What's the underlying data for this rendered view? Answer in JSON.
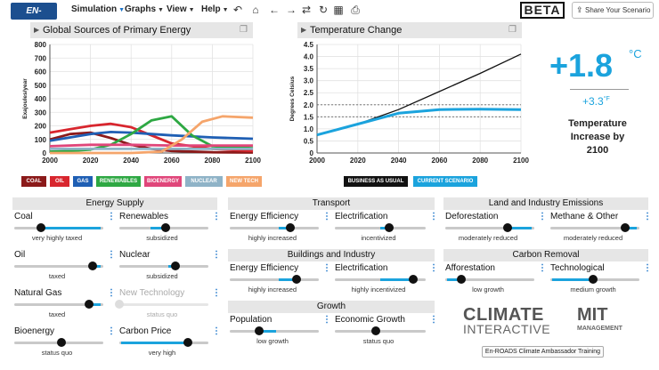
{
  "app": {
    "logo_text": "EN-ROADS",
    "menus": [
      {
        "label": "Simulation",
        "caret": true
      },
      {
        "label": "Graphs",
        "caret": true
      },
      {
        "label": "View",
        "caret": true
      },
      {
        "label": "Help",
        "caret": true
      }
    ],
    "beta_label": "BETA",
    "share_label": "Share Your Scenario"
  },
  "graph_left": {
    "title": "Global Sources of Primary Energy",
    "legend": [
      {
        "label": "COAL",
        "color": "#8b1a1a"
      },
      {
        "label": "OIL",
        "color": "#d8262e"
      },
      {
        "label": "GAS",
        "color": "#1f5fb4"
      },
      {
        "label": "RENEWABLES",
        "color": "#2ea843"
      },
      {
        "label": "BIOENERGY",
        "color": "#e0467a"
      },
      {
        "label": "NUCLEAR",
        "color": "#8fb3c7"
      },
      {
        "label": "NEW TECH",
        "color": "#f5a56b"
      }
    ]
  },
  "graph_right": {
    "title": "Temperature Change",
    "legend": [
      {
        "label": "BUSINESS AS USUAL",
        "color": "#111111"
      },
      {
        "label": "CURRENT SCENARIO",
        "color": "#1ba3dd"
      }
    ]
  },
  "chart_data": [
    {
      "type": "line",
      "title": "Global Sources of Primary Energy",
      "ylabel": "Exajoules/year",
      "xlabel": "",
      "xlim": [
        2000,
        2100
      ],
      "ylim": [
        0,
        800
      ],
      "x_ticks": [
        "2000",
        "2020",
        "2040",
        "2060",
        "2080",
        "2100"
      ],
      "y_ticks": [
        "0",
        "100",
        "200",
        "300",
        "400",
        "500",
        "600",
        "700",
        "800"
      ],
      "grid": true,
      "series": [
        {
          "name": "COAL",
          "color": "#8b1a1a",
          "x": [
            2000,
            2010,
            2020,
            2030,
            2040,
            2050,
            2060,
            2080,
            2100
          ],
          "y": [
            100,
            140,
            150,
            110,
            60,
            30,
            15,
            5,
            3
          ]
        },
        {
          "name": "OIL",
          "color": "#d8262e",
          "x": [
            2000,
            2010,
            2020,
            2030,
            2040,
            2050,
            2060,
            2080,
            2100
          ],
          "y": [
            150,
            175,
            200,
            215,
            190,
            130,
            70,
            30,
            15
          ]
        },
        {
          "name": "GAS",
          "color": "#1f5fb4",
          "x": [
            2000,
            2010,
            2020,
            2030,
            2040,
            2050,
            2060,
            2080,
            2100
          ],
          "y": [
            90,
            115,
            140,
            155,
            150,
            140,
            130,
            115,
            105
          ]
        },
        {
          "name": "RENEWABLES",
          "color": "#2ea843",
          "x": [
            2000,
            2010,
            2020,
            2030,
            2040,
            2050,
            2060,
            2070,
            2080,
            2100
          ],
          "y": [
            10,
            15,
            25,
            60,
            140,
            240,
            270,
            130,
            50,
            35
          ]
        },
        {
          "name": "BIOENERGY",
          "color": "#e0467a",
          "x": [
            2000,
            2020,
            2040,
            2060,
            2080,
            2100
          ],
          "y": [
            50,
            60,
            60,
            55,
            55,
            55
          ]
        },
        {
          "name": "NUCLEAR",
          "color": "#8fb3c7",
          "x": [
            2000,
            2020,
            2040,
            2060,
            2080,
            2100
          ],
          "y": [
            30,
            30,
            30,
            30,
            30,
            30
          ]
        },
        {
          "name": "NEW TECH",
          "color": "#f5a56b",
          "x": [
            2000,
            2040,
            2055,
            2065,
            2075,
            2085,
            2100
          ],
          "y": [
            0,
            0,
            10,
            100,
            230,
            270,
            260
          ]
        }
      ]
    },
    {
      "type": "line",
      "title": "Temperature Change",
      "ylabel": "Degrees Celsius",
      "xlabel": "",
      "xlim": [
        2000,
        2100
      ],
      "ylim": [
        0,
        4.5
      ],
      "x_ticks": [
        "2000",
        "2020",
        "2040",
        "2060",
        "2080",
        "2100"
      ],
      "y_ticks": [
        "0",
        "0.5",
        "1.0",
        "1.5",
        "2.0",
        "2.5",
        "3.0",
        "3.5",
        "4.0",
        "4.5"
      ],
      "reference_lines": [
        1.5,
        2.0
      ],
      "grid": true,
      "series": [
        {
          "name": "BUSINESS AS USUAL",
          "color": "#111111",
          "x": [
            2000,
            2020,
            2040,
            2060,
            2080,
            2100
          ],
          "y": [
            0.75,
            1.2,
            1.8,
            2.55,
            3.3,
            4.1
          ]
        },
        {
          "name": "CURRENT SCENARIO",
          "color": "#1ba3dd",
          "x": [
            2000,
            2020,
            2040,
            2060,
            2080,
            2100
          ],
          "y": [
            0.75,
            1.2,
            1.65,
            1.8,
            1.82,
            1.8
          ]
        }
      ]
    }
  ],
  "temperature": {
    "value": "+1.8",
    "unit_c": "°C",
    "value_f": "+3.3",
    "unit_f": "°F",
    "description": "Temperature Increase by 2100"
  },
  "groups": {
    "energy_supply": "Energy Supply",
    "transport": "Transport",
    "land": "Land and Industry Emissions",
    "buildings": "Buildings and Industry",
    "carbon_removal": "Carbon Removal",
    "growth": "Growth"
  },
  "sliders": {
    "coal": {
      "label": "Coal",
      "status": "very highly taxed",
      "level": 0.3,
      "fill_from": 0.3,
      "fill_to": 0.97
    },
    "renewables": {
      "label": "Renewables",
      "status": "subsidized",
      "level": 0.52,
      "fill_from": 0.35,
      "fill_to": 0.52
    },
    "oil": {
      "label": "Oil",
      "status": "taxed",
      "level": 0.88,
      "fill_from": 0.88,
      "fill_to": 0.97
    },
    "nuclear": {
      "label": "Nuclear",
      "status": "subsidized",
      "level": 0.63,
      "fill_from": 0.55,
      "fill_to": 0.63
    },
    "natural_gas": {
      "label": "Natural Gas",
      "status": "taxed",
      "level": 0.84,
      "fill_from": 0.84,
      "fill_to": 0.97
    },
    "new_technology": {
      "label": "New Technology",
      "status": "status quo",
      "level": 0.0,
      "disabled": true
    },
    "bioenergy": {
      "label": "Bioenergy",
      "status": "status quo",
      "level": 0.53
    },
    "carbon_price": {
      "label": "Carbon Price",
      "status": "very high",
      "level": 0.77,
      "fill_from": 0.02,
      "fill_to": 0.77
    },
    "transport_efficiency": {
      "label": "Energy Efficiency",
      "status": "highly increased",
      "level": 0.68,
      "fill_from": 0.55,
      "fill_to": 0.68
    },
    "transport_electrification": {
      "label": "Electrification",
      "status": "incentivized",
      "level": 0.6,
      "fill_from": 0.5,
      "fill_to": 0.6
    },
    "buildings_efficiency": {
      "label": "Energy Efficiency",
      "status": "highly increased",
      "level": 0.75,
      "fill_from": 0.55,
      "fill_to": 0.75
    },
    "buildings_electrification": {
      "label": "Electrification",
      "status": "highly incentivized",
      "level": 0.86,
      "fill_from": 0.5,
      "fill_to": 0.86
    },
    "population": {
      "label": "Population",
      "status": "low growth",
      "level": 0.33,
      "fill_from": 0.33,
      "fill_to": 0.52
    },
    "economic_growth": {
      "label": "Economic Growth",
      "status": "status quo",
      "level": 0.45
    },
    "deforestation": {
      "label": "Deforestation",
      "status": "moderately reduced",
      "level": 0.7,
      "fill_from": 0.7,
      "fill_to": 0.97
    },
    "methane": {
      "label": "Methane & Other",
      "status": "moderately reduced",
      "level": 0.84,
      "fill_from": 0.84,
      "fill_to": 0.97
    },
    "afforestation": {
      "label": "Afforestation",
      "status": "low growth",
      "level": 0.18,
      "fill_from": 0.02,
      "fill_to": 0.18
    },
    "technological": {
      "label": "Technological",
      "status": "medium growth",
      "level": 0.48,
      "fill_from": 0.02,
      "fill_to": 0.48
    }
  },
  "logos": {
    "ci_line1": "CLIMATE",
    "ci_line2": "INTERACTIVE",
    "mit_line1": "MIT",
    "mit_line2": "MANAGEMENT"
  },
  "training_button": "En-ROADS Climate Ambassador Training"
}
